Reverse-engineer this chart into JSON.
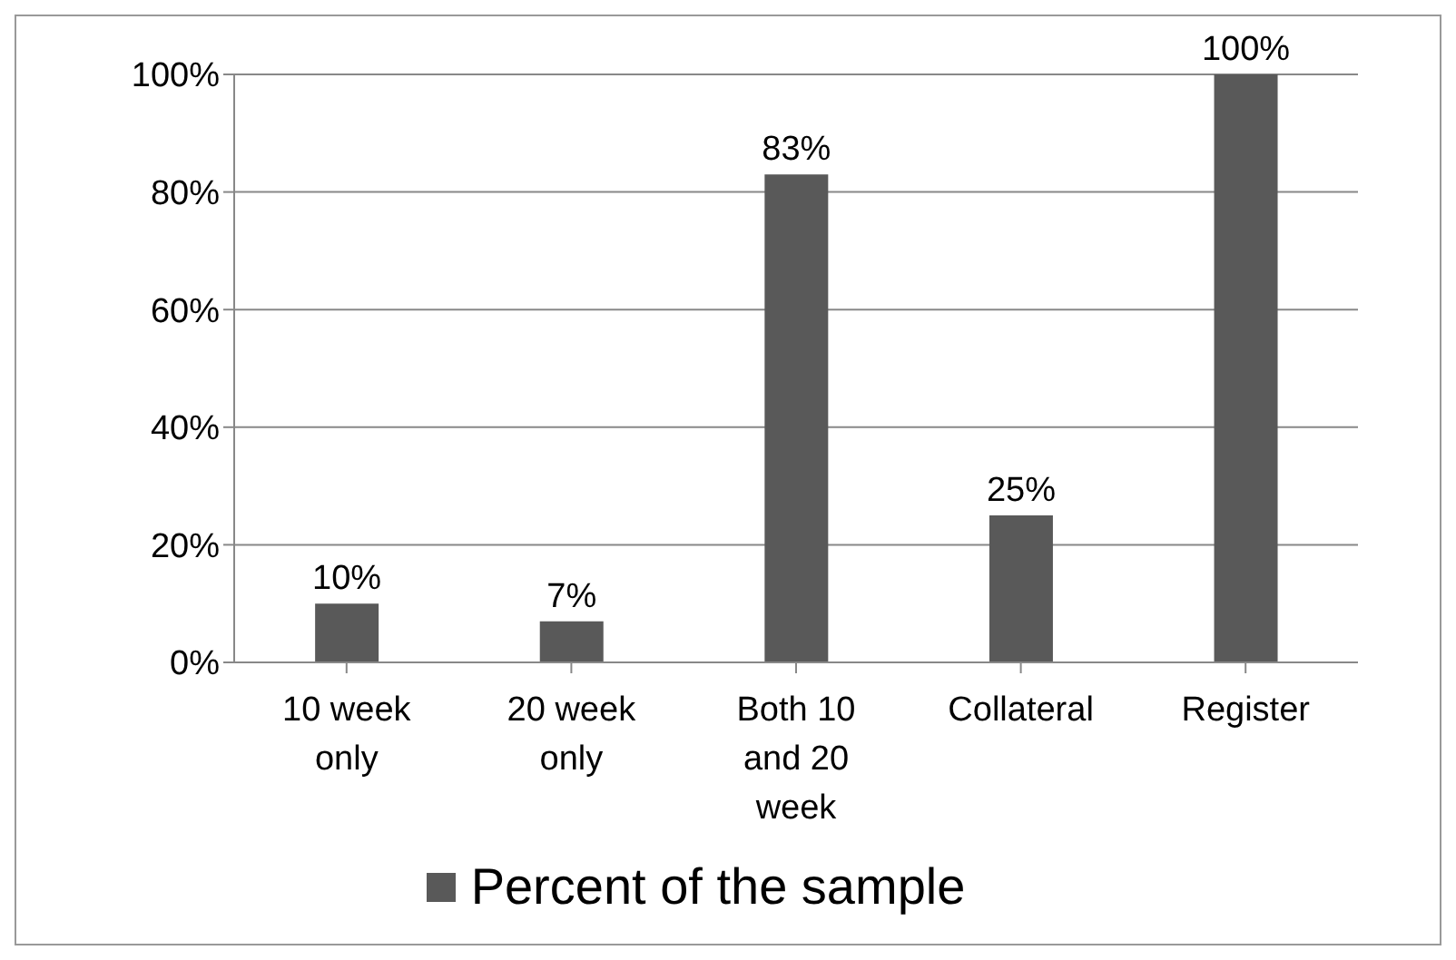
{
  "chart_data": {
    "type": "bar",
    "categories": [
      "10 week only",
      "20 week only",
      "Both 10 and 20 week",
      "Collateral",
      "Register"
    ],
    "series": [
      {
        "name": "Percent of the sample",
        "color": "#595959",
        "values": [
          10,
          7,
          83,
          25,
          100
        ],
        "value_labels": [
          "10%",
          "7%",
          "83%",
          "25%",
          "100%"
        ]
      }
    ],
    "ylim": [
      0,
      100
    ],
    "yticks": [
      {
        "value": 0,
        "label": "0%"
      },
      {
        "value": 20,
        "label": "20%"
      },
      {
        "value": 40,
        "label": "40%"
      },
      {
        "value": 60,
        "label": "60%"
      },
      {
        "value": 80,
        "label": "80%"
      },
      {
        "value": 100,
        "label": "100%"
      }
    ],
    "grid": "y",
    "legend": "bottom"
  }
}
